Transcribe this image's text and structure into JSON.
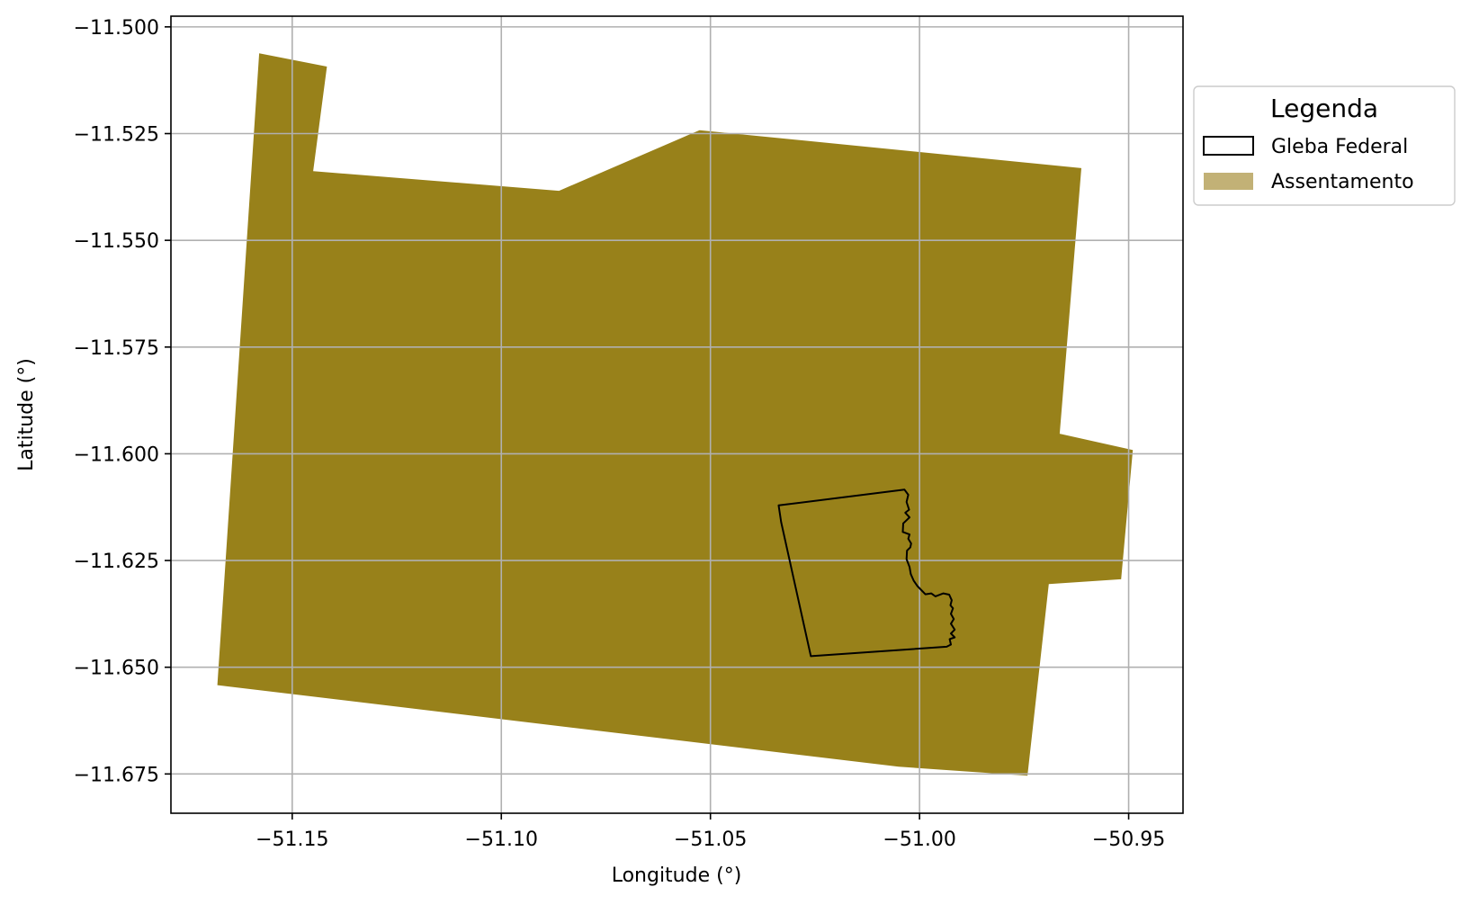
{
  "map": {
    "x_label": "Longitude (°)",
    "y_label": "Latitude (°)",
    "x_ticks": [
      "−51.15",
      "−51.10",
      "−51.05",
      "−51.00",
      "−50.95"
    ],
    "y_ticks": [
      "−11.500",
      "−11.525",
      "−11.550",
      "−11.575",
      "−11.600",
      "−11.625",
      "−11.650",
      "−11.675"
    ],
    "grid": true
  },
  "legend": {
    "title": "Legenda",
    "placement": "outside-right-top",
    "items": [
      {
        "label": "Gleba Federal",
        "style": "outline",
        "color": "#000000"
      },
      {
        "label": "Assentamento",
        "style": "fill",
        "color": "#C2B176"
      }
    ]
  },
  "chart_data": {
    "type": "map",
    "xlim": [
      -51.179,
      -50.937
    ],
    "ylim": [
      -11.6842,
      -11.4975
    ],
    "x_tick_values": [
      -51.15,
      -51.1,
      -51.05,
      -51.0,
      -50.95
    ],
    "y_tick_values": [
      -11.5,
      -11.525,
      -11.55,
      -11.575,
      -11.6,
      -11.625,
      -11.65,
      -11.675
    ],
    "layers": [
      {
        "name": "Assentamento",
        "fill": "#98811A",
        "coords": [
          [
            -51.1579,
            -11.5062
          ],
          [
            -51.1417,
            -11.5093
          ],
          [
            -51.145,
            -11.5338
          ],
          [
            -51.0862,
            -11.5384
          ],
          [
            -51.0526,
            -11.5242
          ],
          [
            -50.9613,
            -11.5331
          ],
          [
            -50.9665,
            -11.5953
          ],
          [
            -50.949,
            -11.5991
          ],
          [
            -50.9518,
            -11.6294
          ],
          [
            -50.9691,
            -11.6305
          ],
          [
            -50.9742,
            -11.6754
          ],
          [
            -51.005,
            -11.6733
          ],
          [
            -51.1679,
            -11.6542
          ]
        ]
      },
      {
        "name": "Gleba Federal",
        "stroke": "#000000",
        "coords": [
          [
            -51.0337,
            -11.6121
          ],
          [
            -51.0036,
            -11.6084
          ],
          [
            -51.0027,
            -11.6096
          ],
          [
            -51.0031,
            -11.6113
          ],
          [
            -51.0025,
            -11.6131
          ],
          [
            -51.0034,
            -11.6138
          ],
          [
            -51.0024,
            -11.6149
          ],
          [
            -51.0039,
            -11.6163
          ],
          [
            -51.004,
            -11.6183
          ],
          [
            -51.0024,
            -11.6189
          ],
          [
            -51.0027,
            -11.6199
          ],
          [
            -51.002,
            -11.621
          ],
          [
            -51.0022,
            -11.6219
          ],
          [
            -51.003,
            -11.6227
          ],
          [
            -51.0031,
            -11.6247
          ],
          [
            -51.0024,
            -11.6265
          ],
          [
            -51.0021,
            -11.6282
          ],
          [
            -51.0014,
            -11.6297
          ],
          [
            -51.0005,
            -11.631
          ],
          [
            -50.9986,
            -11.6329
          ],
          [
            -50.9972,
            -11.6327
          ],
          [
            -50.9962,
            -11.6334
          ],
          [
            -50.9943,
            -11.6327
          ],
          [
            -50.9929,
            -11.633
          ],
          [
            -50.9923,
            -11.6343
          ],
          [
            -50.9926,
            -11.6355
          ],
          [
            -50.992,
            -11.6362
          ],
          [
            -50.9925,
            -11.6375
          ],
          [
            -50.9918,
            -11.6387
          ],
          [
            -50.9925,
            -11.6398
          ],
          [
            -50.9916,
            -11.6412
          ],
          [
            -50.9925,
            -11.6421
          ],
          [
            -50.9916,
            -11.643
          ],
          [
            -50.9928,
            -11.6434
          ],
          [
            -50.9925,
            -11.6447
          ],
          [
            -50.9935,
            -11.6452
          ],
          [
            -51.026,
            -11.6474
          ],
          [
            -51.0331,
            -11.616
          ]
        ]
      }
    ]
  }
}
